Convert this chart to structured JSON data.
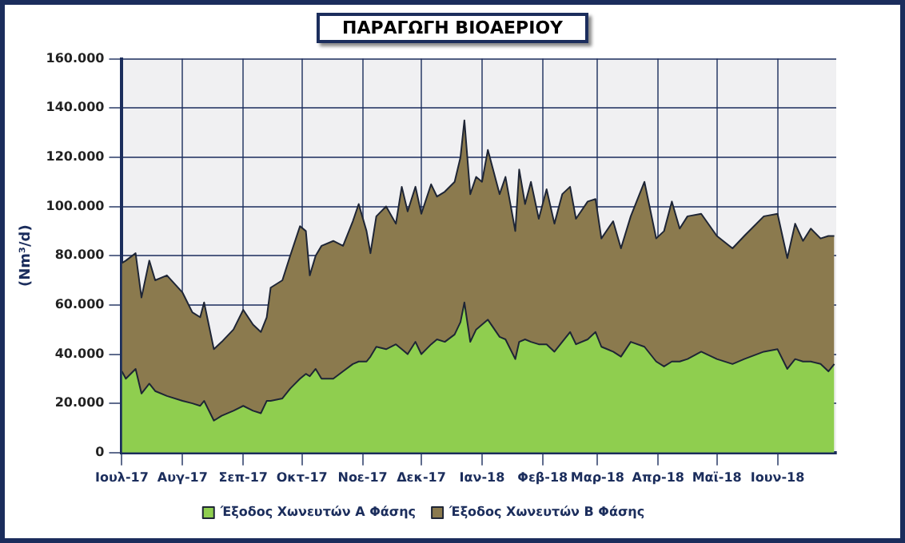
{
  "chart_data": {
    "type": "area",
    "title": "ΠΑΡΑΓΩΓΗ ΒΙΟΑΕΡΙΟΥ",
    "ylabel": "(Nm³/d)",
    "stacked": true,
    "grid": true,
    "legend": "bottom",
    "x": [
      "2017-07-01",
      "2017-07-03",
      "2017-07-08",
      "2017-07-11",
      "2017-07-15",
      "2017-07-18",
      "2017-07-24",
      "2017-08-01",
      "2017-08-06",
      "2017-08-10",
      "2017-08-12",
      "2017-08-17",
      "2017-08-21",
      "2017-08-27",
      "2017-09-01",
      "2017-09-06",
      "2017-09-10",
      "2017-09-13",
      "2017-09-15",
      "2017-09-21",
      "2017-09-25",
      "2017-09-30",
      "2017-10-03",
      "2017-10-05",
      "2017-10-08",
      "2017-10-11",
      "2017-10-17",
      "2017-10-22",
      "2017-10-27",
      "2017-10-30",
      "2017-11-03",
      "2017-11-05",
      "2017-11-08",
      "2017-11-13",
      "2017-11-18",
      "2017-11-21",
      "2017-11-24",
      "2017-11-28",
      "2017-12-01",
      "2017-12-06",
      "2017-12-09",
      "2017-12-13",
      "2017-12-18",
      "2017-12-21",
      "2017-12-23",
      "2017-12-26",
      "2017-12-29",
      "2018-01-01",
      "2018-01-04",
      "2018-01-10",
      "2018-01-13",
      "2018-01-18",
      "2018-01-20",
      "2018-01-23",
      "2018-01-26",
      "2018-01-30",
      "2018-02-03",
      "2018-02-07",
      "2018-02-11",
      "2018-02-15",
      "2018-02-18",
      "2018-02-24",
      "2018-02-28",
      "2018-03-03",
      "2018-03-09",
      "2018-03-13",
      "2018-03-18",
      "2018-03-25",
      "2018-03-31",
      "2018-04-04",
      "2018-04-08",
      "2018-04-12",
      "2018-04-16",
      "2018-04-23",
      "2018-05-01",
      "2018-05-09",
      "2018-05-15",
      "2018-05-25",
      "2018-06-01",
      "2018-06-06",
      "2018-06-10",
      "2018-06-14",
      "2018-06-18",
      "2018-06-23",
      "2018-06-27",
      "2018-06-30"
    ],
    "series": [
      {
        "name": "Έξοδος Χωνευτών Α Φάσης",
        "color": "#8fce4f",
        "values": [
          33000,
          30000,
          34000,
          24000,
          28000,
          25000,
          23000,
          21000,
          20000,
          19000,
          21000,
          13000,
          15000,
          17000,
          19000,
          17000,
          16000,
          21000,
          21000,
          22000,
          26000,
          30000,
          32000,
          31000,
          34000,
          30000,
          30000,
          33000,
          36000,
          37000,
          37000,
          39000,
          43000,
          42000,
          44000,
          42000,
          40000,
          45000,
          40000,
          44000,
          46000,
          45000,
          48000,
          53000,
          61000,
          45000,
          50000,
          52000,
          54000,
          47000,
          46000,
          38000,
          45000,
          46000,
          45000,
          44000,
          44000,
          41000,
          45000,
          49000,
          44000,
          46000,
          49000,
          43000,
          41000,
          39000,
          45000,
          43000,
          37000,
          35000,
          37000,
          37000,
          38000,
          41000,
          38000,
          36000,
          38000,
          41000,
          42000,
          34000,
          38000,
          37000,
          37000,
          36000,
          33000,
          36000
        ]
      },
      {
        "name": "Έξοδος Χωνευτών Β Φάσης",
        "color": "#8b7a4e",
        "values": [
          44000,
          48000,
          47000,
          39000,
          50000,
          45000,
          49000,
          44000,
          37000,
          36000,
          40000,
          29000,
          30000,
          33000,
          39000,
          35000,
          33000,
          34000,
          46000,
          48000,
          54000,
          62000,
          58000,
          41000,
          46000,
          54000,
          56000,
          51000,
          58000,
          64000,
          53000,
          42000,
          53000,
          58000,
          49000,
          66000,
          58000,
          63000,
          57000,
          65000,
          58000,
          61000,
          62000,
          67000,
          74000,
          60000,
          62000,
          58000,
          69000,
          58000,
          66000,
          52000,
          70000,
          55000,
          65000,
          51000,
          63000,
          52000,
          60000,
          59000,
          51000,
          56000,
          54000,
          44000,
          53000,
          44000,
          51000,
          67000,
          50000,
          55000,
          65000,
          54000,
          58000,
          56000,
          50000,
          47000,
          50000,
          55000,
          55000,
          45000,
          55000,
          49000,
          54000,
          51000,
          55000,
          52000
        ]
      }
    ],
    "xlim": [
      "2017-07-01",
      "2018-07-01"
    ],
    "xticks": [
      {
        "value": "2017-07-01",
        "label": "Ιουλ-17"
      },
      {
        "value": "2017-08-01",
        "label": "Αυγ-17"
      },
      {
        "value": "2017-09-01",
        "label": "Σεπ-17"
      },
      {
        "value": "2017-10-01",
        "label": "Οκτ-17"
      },
      {
        "value": "2017-11-01",
        "label": "Νοε-17"
      },
      {
        "value": "2017-12-01",
        "label": "Δεκ-17"
      },
      {
        "value": "2018-01-01",
        "label": "Ιαν-18"
      },
      {
        "value": "2018-02-01",
        "label": "Φεβ-18"
      },
      {
        "value": "2018-03-01",
        "label": "Μαρ-18"
      },
      {
        "value": "2018-04-01",
        "label": "Απρ-18"
      },
      {
        "value": "2018-05-01",
        "label": "Μαϊ-18"
      },
      {
        "value": "2018-06-01",
        "label": "Ιουν-18"
      }
    ],
    "ylim": [
      0,
      160000
    ],
    "yticks": [
      {
        "value": 0,
        "label": "0"
      },
      {
        "value": 20000,
        "label": "20.000"
      },
      {
        "value": 40000,
        "label": "40.000"
      },
      {
        "value": 60000,
        "label": "60.000"
      },
      {
        "value": 80000,
        "label": "80.000"
      },
      {
        "value": 100000,
        "label": "100.000"
      },
      {
        "value": 120000,
        "label": "120.000"
      },
      {
        "value": 140000,
        "label": "140.000"
      },
      {
        "value": 160000,
        "label": "160.000"
      }
    ]
  }
}
